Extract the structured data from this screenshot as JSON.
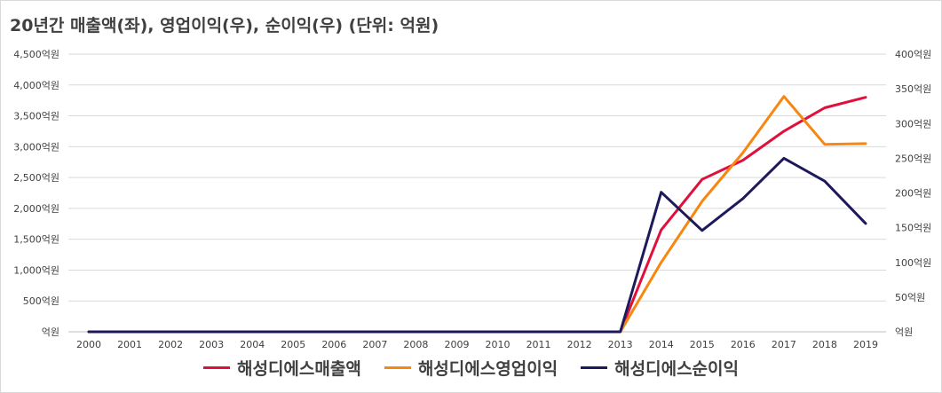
{
  "title": "20년간 매출액(좌), 영업이익(우), 순이익(우) (단위: 억원)",
  "chart_data": {
    "type": "line",
    "title": "20년간 매출액(좌), 영업이익(우), 순이익(우) (단위: 억원)",
    "categories": [
      "2000",
      "2001",
      "2002",
      "2003",
      "2004",
      "2005",
      "2006",
      "2007",
      "2008",
      "2009",
      "2010",
      "2011",
      "2012",
      "2013",
      "2014",
      "2015",
      "2016",
      "2017",
      "2018",
      "2019"
    ],
    "y_left": {
      "ylim": [
        0,
        4500
      ],
      "ticks": [
        0,
        500,
        1000,
        1500,
        2000,
        2500,
        3000,
        3500,
        4000,
        4500
      ],
      "tick_labels": [
        "억원",
        "500억원",
        "1,000억원",
        "1,500억원",
        "2,000억원",
        "2,500억원",
        "3,000억원",
        "3,500억원",
        "4,000억원",
        "4,500억원"
      ]
    },
    "y_right": {
      "ylim": [
        0,
        400
      ],
      "ticks": [
        0,
        50,
        100,
        150,
        200,
        250,
        300,
        350,
        400
      ],
      "tick_labels": [
        "억원",
        "50억원",
        "100억원",
        "150억원",
        "200억원",
        "250억원",
        "300억원",
        "350억원",
        "400억원"
      ]
    },
    "grid": true,
    "legend_position": "bottom",
    "series": [
      {
        "name": "해성디에스매출액",
        "axis": "left",
        "color": "#e0103d",
        "values": [
          0,
          0,
          0,
          0,
          0,
          0,
          0,
          0,
          0,
          0,
          0,
          0,
          0,
          0,
          1650,
          2470,
          2780,
          3250,
          3630,
          3800
        ]
      },
      {
        "name": "해성디에스영업이익",
        "axis": "right",
        "color": "#f7870f",
        "values": [
          0,
          0,
          0,
          0,
          0,
          0,
          0,
          0,
          0,
          0,
          0,
          0,
          0,
          0,
          100,
          188,
          258,
          339,
          270,
          271
        ]
      },
      {
        "name": "해성디에스순이익",
        "axis": "right",
        "color": "#1c1a5a",
        "values": [
          0,
          0,
          0,
          0,
          0,
          0,
          0,
          0,
          0,
          0,
          0,
          0,
          0,
          0,
          201,
          146,
          192,
          250,
          217,
          156
        ]
      }
    ]
  }
}
